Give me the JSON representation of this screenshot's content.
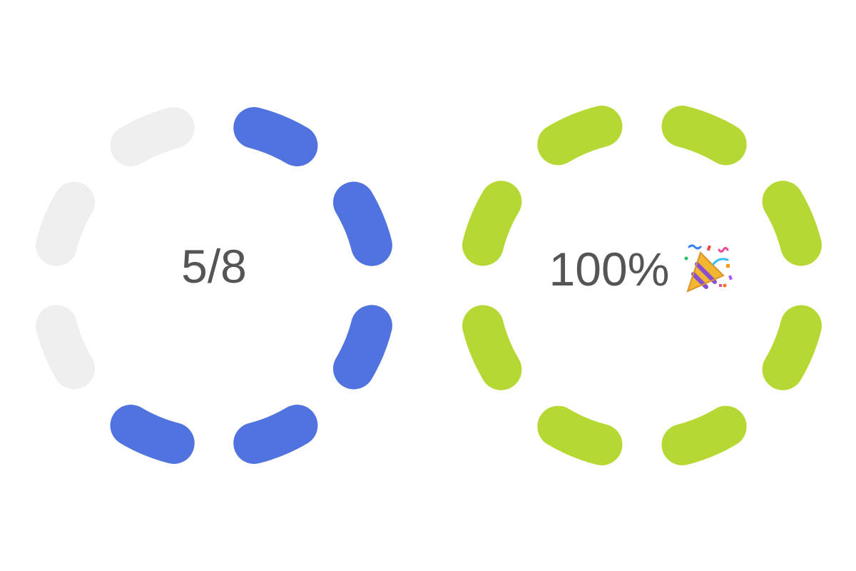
{
  "rings": [
    {
      "label": "5/8",
      "segments_total": 8,
      "segments_filled": 5,
      "fill_color": "#5173e0",
      "empty_color": "#efefef",
      "icon": null
    },
    {
      "label": "100%",
      "segments_total": 8,
      "segments_filled": 8,
      "fill_color": "#b6d834",
      "empty_color": "#efefef",
      "icon": "party-popper-icon"
    }
  ]
}
